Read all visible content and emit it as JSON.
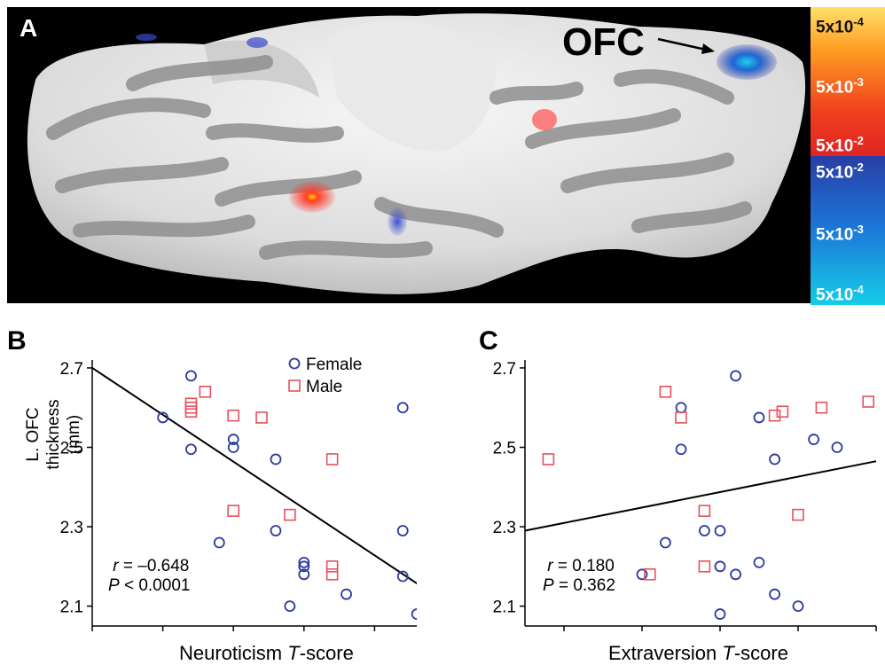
{
  "panel_a": {
    "letter": "A",
    "ofc_label": "OFC",
    "colorbar": {
      "warm_colors": [
        "#ffd24a",
        "#ff8a1f",
        "#ee2a20"
      ],
      "cool_colors": [
        "#2a3fa8",
        "#1c7ad8",
        "#19c8e6"
      ],
      "labels": [
        {
          "base": "5x10",
          "exp": "-4"
        },
        {
          "base": "5x10",
          "exp": "-3"
        },
        {
          "base": "5x10",
          "exp": "-2"
        },
        {
          "base": "5x10",
          "exp": "-2"
        },
        {
          "base": "5x10",
          "exp": "-3"
        },
        {
          "base": "5x10",
          "exp": "-4"
        }
      ]
    }
  },
  "panel_b": {
    "letter": "B",
    "y_label_line1": "L. OFC",
    "y_label_line2": "thickness (mm)",
    "x_label_text": "Neuroticism ",
    "x_label_italic": "T",
    "x_label_suffix": "-score",
    "stat_r_label": "r",
    "stat_r_value": " = –0.648",
    "stat_p_label": "P",
    "stat_p_value": " < 0.0001",
    "legend_female": "Female",
    "legend_male": "Male"
  },
  "panel_c": {
    "letter": "C",
    "x_label_text": "Extraversion ",
    "x_label_italic": "T",
    "x_label_suffix": "-score",
    "stat_r_label": "r",
    "stat_r_value": " = 0.180",
    "stat_p_label": "P",
    "stat_p_value": " = 0.362"
  },
  "colors": {
    "female": "#2b3a9e",
    "male": "#e8505b"
  },
  "chart_data": [
    {
      "type": "scatter",
      "xlabel": "Neuroticism T-score",
      "ylabel": "L. OFC thickness (mm)",
      "xlim": [
        30,
        55
      ],
      "ylim": [
        2.05,
        2.72
      ],
      "xticks": [
        "30",
        "35",
        "40",
        "45",
        "50",
        "55"
      ],
      "yticks": [
        "2.1",
        "2.3",
        "2.5",
        "2.7"
      ],
      "legend_position": "top-center",
      "regression_line": {
        "x": [
          30,
          55
        ],
        "y": [
          2.7,
          2.11
        ]
      },
      "series": [
        {
          "name": "Female",
          "marker": "circle",
          "points": [
            [
              35,
              2.575
            ],
            [
              37,
              2.68
            ],
            [
              37,
              2.495
            ],
            [
              39,
              2.26
            ],
            [
              40,
              2.52
            ],
            [
              40,
              2.5
            ],
            [
              43,
              2.47
            ],
            [
              43,
              2.29
            ],
            [
              44,
              2.1
            ],
            [
              45,
              2.21
            ],
            [
              45,
              2.2
            ],
            [
              45,
              2.18
            ],
            [
              48,
              2.13
            ],
            [
              52,
              2.6
            ],
            [
              52,
              2.29
            ],
            [
              52,
              2.175
            ],
            [
              53,
              2.08
            ]
          ]
        },
        {
          "name": "Male",
          "marker": "square",
          "points": [
            [
              37,
              2.61
            ],
            [
              37,
              2.6
            ],
            [
              37,
              2.59
            ],
            [
              38,
              2.64
            ],
            [
              40,
              2.58
            ],
            [
              40,
              2.34
            ],
            [
              42,
              2.575
            ],
            [
              44,
              2.33
            ],
            [
              47,
              2.47
            ],
            [
              47,
              2.2
            ],
            [
              47,
              2.18
            ]
          ]
        }
      ]
    },
    {
      "type": "scatter",
      "xlabel": "Extraversion T-score",
      "ylabel": "L. OFC thickness (mm)",
      "xlim": [
        30,
        75
      ],
      "ylim": [
        2.05,
        2.72
      ],
      "xticks": [
        "35",
        "45",
        "55",
        "65",
        "75"
      ],
      "yticks": [
        "2.1",
        "2.3",
        "2.5",
        "2.7"
      ],
      "regression_line": {
        "x": [
          30,
          75
        ],
        "y": [
          2.29,
          2.465
        ]
      },
      "series": [
        {
          "name": "Female",
          "marker": "circle",
          "points": [
            [
              45,
              2.18
            ],
            [
              48,
              2.26
            ],
            [
              50,
              2.6
            ],
            [
              50,
              2.495
            ],
            [
              53,
              2.29
            ],
            [
              55,
              2.29
            ],
            [
              55,
              2.2
            ],
            [
              55,
              2.08
            ],
            [
              57,
              2.68
            ],
            [
              57,
              2.18
            ],
            [
              60,
              2.575
            ],
            [
              60,
              2.21
            ],
            [
              62,
              2.47
            ],
            [
              62,
              2.13
            ],
            [
              65,
              2.1
            ],
            [
              67,
              2.52
            ],
            [
              70,
              2.5
            ]
          ]
        },
        {
          "name": "Male",
          "marker": "square",
          "points": [
            [
              33,
              2.47
            ],
            [
              46,
              2.18
            ],
            [
              48,
              2.64
            ],
            [
              50,
              2.575
            ],
            [
              53,
              2.34
            ],
            [
              53,
              2.2
            ],
            [
              62,
              2.58
            ],
            [
              63,
              2.59
            ],
            [
              65,
              2.33
            ],
            [
              68,
              2.6
            ],
            [
              74,
              2.615
            ]
          ]
        }
      ]
    }
  ]
}
